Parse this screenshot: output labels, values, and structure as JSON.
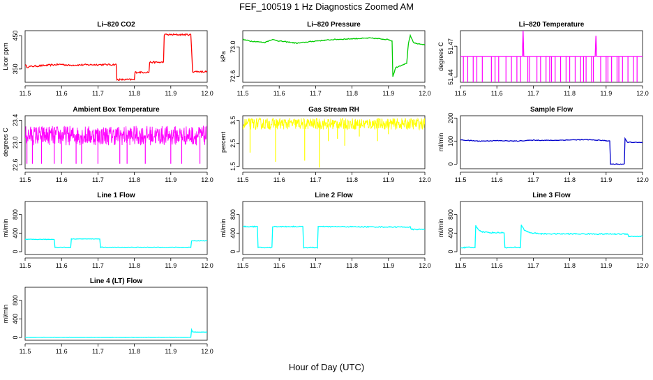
{
  "figure": {
    "title": "FEF_100519  1 Hz Diagnostics Zoomed AM",
    "xlabel": "Hour of Day (UTC)"
  },
  "chart_data": [
    {
      "type": "line",
      "title": "Li–820 CO2",
      "ylabel": "Licor ppm",
      "color": "#ff0000",
      "xlim": [
        11.5,
        12.0
      ],
      "ylim": [
        310,
        465
      ],
      "xticks": [
        "11.5",
        "11.6",
        "11.7",
        "11.8",
        "11.9",
        "12.0"
      ],
      "yticks": [
        {
          "v": 350,
          "label": "350"
        },
        {
          "v": 450,
          "label": "450"
        }
      ],
      "x": [
        11.5,
        11.505,
        11.52,
        11.56,
        11.6,
        11.62,
        11.64,
        11.7,
        11.75,
        11.752,
        11.8,
        11.802,
        11.84,
        11.842,
        11.88,
        11.882,
        11.955,
        11.96,
        12.0
      ],
      "y": [
        363,
        356,
        358,
        361,
        364,
        361,
        362,
        363,
        363,
        318,
        318,
        340,
        340,
        370,
        370,
        453,
        453,
        342,
        342
      ],
      "noise": 2.5
    },
    {
      "type": "line",
      "title": "Li–820 Pressure",
      "ylabel": "kPa",
      "color": "#00cc00",
      "xlim": [
        11.5,
        12.0
      ],
      "ylim": [
        72.52,
        73.22
      ],
      "xticks": [
        "11.5",
        "11.6",
        "11.7",
        "11.8",
        "11.9",
        "12.0"
      ],
      "yticks": [
        {
          "v": 72.6,
          "label": "72.6"
        },
        {
          "v": 73.0,
          "label": "73.0"
        }
      ],
      "x": [
        11.5,
        11.52,
        11.56,
        11.58,
        11.6,
        11.65,
        11.7,
        11.75,
        11.8,
        11.85,
        11.9,
        11.91,
        11.912,
        11.92,
        11.95,
        11.955,
        11.96,
        11.97,
        12.0
      ],
      "y": [
        73.1,
        73.08,
        73.06,
        73.1,
        73.08,
        73.05,
        73.08,
        73.1,
        73.11,
        73.12,
        73.1,
        73.08,
        72.6,
        72.72,
        72.78,
        73.05,
        73.15,
        73.05,
        73.03
      ],
      "noise": 0.006
    },
    {
      "type": "line",
      "title": "Li–820 Temperature",
      "ylabel": "degrees C",
      "color": "#ff00ff",
      "xlim": [
        11.5,
        12.0
      ],
      "ylim": [
        51.435,
        51.485
      ],
      "xticks": [
        "11.5",
        "11.6",
        "11.7",
        "11.8",
        "11.9",
        "12.0"
      ],
      "yticks": [
        {
          "v": 51.44,
          "label": "51.44"
        },
        {
          "v": 51.47,
          "label": "51.47"
        }
      ],
      "x": [
        11.5,
        11.67,
        11.672,
        11.674,
        11.87,
        11.872,
        11.874,
        12.0
      ],
      "y": [
        51.46,
        51.46,
        51.485,
        51.46,
        51.46,
        51.48,
        51.46,
        51.46
      ],
      "spikes_down": [
        11.508,
        11.52,
        11.535,
        11.545,
        11.56,
        11.585,
        11.595,
        11.605,
        11.625,
        11.64,
        11.655,
        11.665,
        11.685,
        11.69,
        11.71,
        11.72,
        11.735,
        11.745,
        11.75,
        11.76,
        11.775,
        11.79,
        11.8,
        11.815,
        11.83,
        11.838,
        11.845,
        11.86,
        11.865,
        11.885,
        11.9,
        11.905,
        11.915,
        11.93,
        11.935,
        11.945,
        11.96,
        11.975,
        11.985
      ],
      "spike_level": 51.435
    },
    {
      "type": "line",
      "title": "Ambient Box Temperature",
      "ylabel": "degrees C",
      "color": "#ff00ff",
      "xlim": [
        11.5,
        12.0
      ],
      "ylim": [
        22.53,
        23.48
      ],
      "xticks": [
        "11.5",
        "11.6",
        "11.7",
        "11.8",
        "11.9",
        "12.0"
      ],
      "yticks": [
        {
          "v": 22.6,
          "label": "22.6"
        },
        {
          "v": 23.0,
          "label": "23.0"
        },
        {
          "v": 23.4,
          "label": "23.4"
        }
      ],
      "x": [
        11.5,
        12.0
      ],
      "y": [
        23.12,
        23.12
      ],
      "band": [
        22.95,
        23.3
      ],
      "spikes_down": [
        11.505,
        11.52,
        11.545,
        11.58,
        11.6,
        11.64,
        11.655,
        11.7,
        11.76,
        11.78,
        11.83,
        11.9,
        11.93,
        11.98
      ],
      "spike_level": 22.62
    },
    {
      "type": "line",
      "title": "Gas Stream RH",
      "ylabel": "percent",
      "color": "#ffff00",
      "xlim": [
        11.5,
        12.0
      ],
      "ylim": [
        1.4,
        3.7
      ],
      "xticks": [
        "11.5",
        "11.6",
        "11.7",
        "11.8",
        "11.9",
        "12.0"
      ],
      "yticks": [
        {
          "v": 1.5,
          "label": "1.5"
        },
        {
          "v": 2.5,
          "label": "2.5"
        },
        {
          "v": 3.5,
          "label": "3.5"
        }
      ],
      "x": [
        11.5,
        12.0
      ],
      "y": [
        3.35,
        3.35
      ],
      "band": [
        3.1,
        3.6
      ],
      "spikes_down": [
        11.52,
        11.59,
        11.67,
        11.71,
        11.735,
        11.76,
        11.78,
        11.82,
        11.87,
        11.9
      ],
      "spike_levels": [
        2.1,
        1.7,
        1.75,
        1.45,
        2.6,
        2.7,
        2.4,
        2.8,
        2.6,
        2.9
      ]
    },
    {
      "type": "line",
      "title": "Sample Flow",
      "ylabel": "ml/min",
      "color": "#0000cc",
      "xlim": [
        11.5,
        12.0
      ],
      "ylim": [
        -20,
        210
      ],
      "xticks": [
        "11.5",
        "11.6",
        "11.7",
        "11.8",
        "11.9",
        "12.0"
      ],
      "yticks": [
        {
          "v": 0,
          "label": "0"
        },
        {
          "v": 100,
          "label": "100"
        },
        {
          "v": 200,
          "label": "200"
        }
      ],
      "x": [
        11.5,
        11.55,
        11.6,
        11.65,
        11.7,
        11.75,
        11.8,
        11.85,
        11.9,
        11.91,
        11.912,
        11.95,
        11.952,
        11.958,
        11.97,
        12.0
      ],
      "y": [
        105,
        100,
        102,
        100,
        104,
        103,
        105,
        106,
        102,
        100,
        0,
        0,
        110,
        95,
        95,
        93
      ],
      "noise": 1.5
    },
    {
      "type": "line",
      "title": "Line 1 Flow",
      "ylabel": "ml/min",
      "color": "#00ffff",
      "xlim": [
        11.5,
        12.0
      ],
      "ylim": [
        -60,
        1080
      ],
      "xticks": [
        "11.5",
        "11.6",
        "11.7",
        "11.8",
        "11.9",
        "12.0"
      ],
      "yticks": [
        {
          "v": 0,
          "label": "0"
        },
        {
          "v": 400,
          "label": "400"
        },
        {
          "v": 800,
          "label": "800"
        }
      ],
      "x": [
        11.5,
        11.58,
        11.582,
        11.625,
        11.627,
        11.705,
        11.707,
        11.955,
        11.957,
        12.0
      ],
      "y": [
        265,
        265,
        95,
        95,
        275,
        275,
        95,
        95,
        235,
        235
      ],
      "noise": 5
    },
    {
      "type": "line",
      "title": "Line 2 Flow",
      "ylabel": "ml/min",
      "color": "#00ffff",
      "xlim": [
        11.5,
        12.0
      ],
      "ylim": [
        -60,
        1080
      ],
      "xticks": [
        "11.5",
        "11.6",
        "11.7",
        "11.8",
        "11.9",
        "12.0"
      ],
      "yticks": [
        {
          "v": 0,
          "label": "0"
        },
        {
          "v": 400,
          "label": "400"
        },
        {
          "v": 800,
          "label": "800"
        }
      ],
      "x": [
        11.5,
        11.54,
        11.542,
        11.58,
        11.582,
        11.665,
        11.667,
        11.705,
        11.707,
        11.96,
        11.962,
        12.0
      ],
      "y": [
        540,
        540,
        90,
        90,
        540,
        540,
        90,
        90,
        540,
        530,
        480,
        480
      ],
      "noise": 10
    },
    {
      "type": "line",
      "title": "Line 3 Flow",
      "ylabel": "ml/min",
      "color": "#00ffff",
      "xlim": [
        11.5,
        12.0
      ],
      "ylim": [
        -60,
        1080
      ],
      "xticks": [
        "11.5",
        "11.6",
        "11.7",
        "11.8",
        "11.9",
        "12.0"
      ],
      "yticks": [
        {
          "v": 0,
          "label": "0"
        },
        {
          "v": 400,
          "label": "400"
        },
        {
          "v": 800,
          "label": "800"
        }
      ],
      "x": [
        11.5,
        11.54,
        11.542,
        11.55,
        11.56,
        11.58,
        11.62,
        11.622,
        11.665,
        11.667,
        11.675,
        11.69,
        11.72,
        11.96,
        11.962,
        12.0
      ],
      "y": [
        90,
        90,
        560,
        470,
        430,
        410,
        410,
        90,
        90,
        580,
        470,
        410,
        385,
        380,
        330,
        330
      ],
      "noise": 12
    },
    {
      "type": "line",
      "title": "Line 4 (LT) Flow",
      "ylabel": "ml/min",
      "color": "#00ffff",
      "xlim": [
        11.5,
        12.0
      ],
      "ylim": [
        -60,
        1080
      ],
      "xticks": [
        "11.5",
        "11.6",
        "11.7",
        "11.8",
        "11.9",
        "12.0"
      ],
      "yticks": [
        {
          "v": 0,
          "label": "0"
        },
        {
          "v": 400,
          "label": "400"
        },
        {
          "v": 800,
          "label": "800"
        }
      ],
      "x": [
        11.5,
        11.955,
        11.957,
        11.96,
        11.97,
        12.0
      ],
      "y": [
        5,
        5,
        170,
        120,
        115,
        115
      ],
      "noise": 2
    }
  ]
}
